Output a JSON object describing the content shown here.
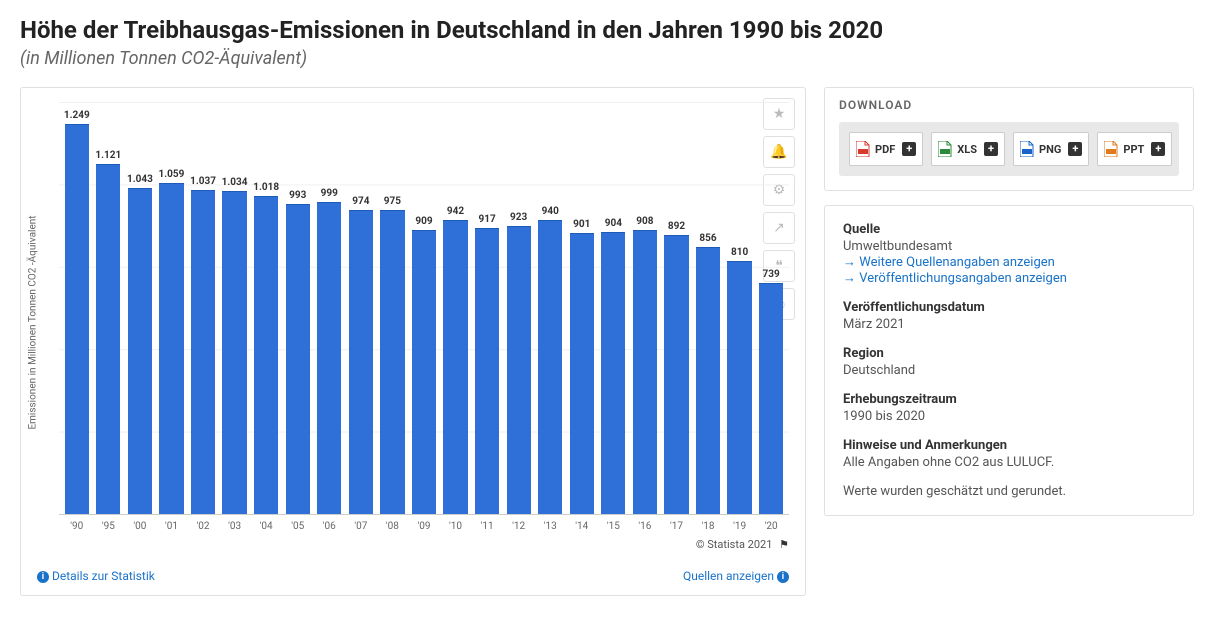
{
  "header": {
    "title": "Höhe der Treibhausgas-Emissionen in Deutschland in den Jahren 1990 bis 2020",
    "subtitle": "(in Millionen Tonnen CO2-Äquivalent)"
  },
  "chart": {
    "type": "bar",
    "ylabel": "Emissionen in Millionen Tonnen CO2 -Äquivalent",
    "bar_color": "#2e6fd8",
    "grid_color": "#f0f0f0",
    "background_color": "#ffffff",
    "ymax": 1300,
    "categories": [
      "'90",
      "'95",
      "'00",
      "'01",
      "'02",
      "'03",
      "'04",
      "'05",
      "'06",
      "'07",
      "'08",
      "'09",
      "'10",
      "'11",
      "'12",
      "'13",
      "'14",
      "'15",
      "'16",
      "'17",
      "'18",
      "'19",
      "'20"
    ],
    "value_labels": [
      "1.249",
      "1.121",
      "1.043",
      "1.059",
      "1.037",
      "1.034",
      "1.018",
      "993",
      "999",
      "974",
      "975",
      "909",
      "942",
      "917",
      "923",
      "940",
      "901",
      "904",
      "908",
      "892",
      "856",
      "810",
      "739"
    ],
    "values": [
      1249,
      1121,
      1043,
      1059,
      1037,
      1034,
      1018,
      993,
      999,
      974,
      975,
      909,
      942,
      917,
      923,
      940,
      901,
      904,
      908,
      892,
      856,
      810,
      739
    ],
    "copyright": "© Statista 2021",
    "details_link": "Details zur Statistik",
    "sources_link": "Quellen anzeigen"
  },
  "actions": {
    "star": "★",
    "bell": "🔔",
    "gear": "⚙",
    "share": "↗",
    "quote": "❝",
    "print": "⎙"
  },
  "download": {
    "title": "DOWNLOAD",
    "buttons": [
      {
        "label": "PDF",
        "color": "#d73a2f"
      },
      {
        "label": "XLS",
        "color": "#2a8a3a"
      },
      {
        "label": "PNG",
        "color": "#1a63c9"
      },
      {
        "label": "PPT",
        "color": "#e07a1f"
      }
    ]
  },
  "meta": {
    "source_label": "Quelle",
    "source_value": "Umweltbundesamt",
    "link_more_sources": "Weitere Quellenangaben anzeigen",
    "link_pub_info": "Veröffentlichungsangaben anzeigen",
    "pubdate_label": "Veröffentlichungsdatum",
    "pubdate_value": "März 2021",
    "region_label": "Region",
    "region_value": "Deutschland",
    "period_label": "Erhebungszeitraum",
    "period_value": "1990 bis 2020",
    "notes_label": "Hinweise und Anmerkungen",
    "notes_value1": "Alle Angaben ohne CO2 aus LULUCF.",
    "notes_value2": "Werte wurden geschätzt und gerundet."
  }
}
